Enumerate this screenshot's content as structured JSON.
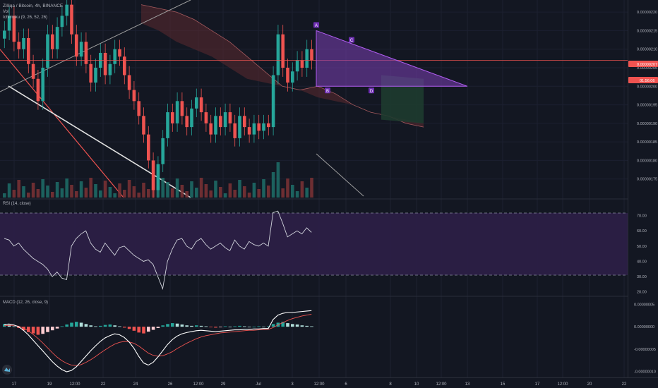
{
  "header": {
    "title": "Zilliqa / Bitcoin, 4h, BINANCE",
    "vol_label": "Vol",
    "ichimoku_label": "Ichimoku (9, 26, 52, 26)",
    "rsi_label": "RSI (14, close)",
    "macd_label": "MACD (12, 26, close, 9)"
  },
  "price_badges": {
    "last": "0.00000207",
    "countdown": "01:56:06"
  },
  "colors": {
    "background": "#131722",
    "up": "#26a69a",
    "down": "#ef5350",
    "pattern": "#9c27b0",
    "rsi_band": "#4a2a6b",
    "price_line": "#ef5350"
  },
  "chart_data": [
    {
      "type": "candlestick",
      "title": "Zilliqa / Bitcoin, 4h, BINANCE",
      "x_ticks": [
        "17",
        "19",
        "12:00",
        "22",
        "24",
        "26",
        "12:00",
        "29",
        "Jul",
        "3",
        "12:00",
        "6",
        "8",
        "10",
        "12:00",
        "13",
        "15",
        "17",
        "12:00",
        "20",
        "22"
      ],
      "y_ticks": [
        "0.00000220",
        "0.00000215",
        "0.00000210",
        "0.00000205",
        "0.00000200",
        "0.00000195",
        "0.00000190",
        "0.00000185",
        "0.00000180",
        "0.00000175"
      ],
      "y_range": [
        1.7e-06,
        2.225e-06
      ],
      "last_price": 2.07e-06,
      "close": [
        2.15e-06,
        2.19e-06,
        2.12e-06,
        2.1e-06,
        2.13e-06,
        2.06e-06,
        2.02e-06,
        1.96e-06,
        2.05e-06,
        2.14e-06,
        2.1e-06,
        2.16e-06,
        2.19e-06,
        2.22e-06,
        2.14e-06,
        2.08e-06,
        2.12e-06,
        2.06e-06,
        2.01e-06,
        2.05e-06,
        2.09e-06,
        2.03e-06,
        2.06e-06,
        2.1e-06,
        2.08e-06,
        2.03e-06,
        1.99e-06,
        1.96e-06,
        1.92e-06,
        1.87e-06,
        1.8e-06,
        1.72e-06,
        1.79e-06,
        1.86e-06,
        1.93e-06,
        1.9e-06,
        1.96e-06,
        1.92e-06,
        1.89e-06,
        1.94e-06,
        1.97e-06,
        1.93e-06,
        1.9e-06,
        1.87e-06,
        1.92e-06,
        1.89e-06,
        1.93e-06,
        1.9e-06,
        1.86e-06,
        1.92e-06,
        1.89e-06,
        1.87e-06,
        1.9e-06,
        1.88e-06,
        1.9e-06,
        1.89e-06,
        2.03e-06,
        2.14e-06,
        2.05e-06,
        2.01e-06,
        2.04e-06,
        2.07e-06,
        2.05e-06,
        2.1e-06,
        2.07e-06
      ],
      "ichimoku": {
        "cloud_a": [
          2.22e-06,
          2.21e-06,
          2.2e-06,
          2.18e-06,
          2.15e-06,
          2.12e-06,
          2.08e-06,
          2.04e-06,
          2e-06,
          1.99e-06,
          2e-06,
          1.98e-06,
          1.95e-06,
          1.93e-06,
          1.92e-06,
          1.9e-06,
          1.89e-06
        ],
        "cloud_b": [
          2.17e-06,
          2.15e-06,
          2.12e-06,
          2.1e-06,
          2.08e-06,
          2.05e-06,
          2.02e-06,
          2.01e-06,
          2e-06,
          1.99e-06,
          1.97e-06,
          1.96e-06,
          1.95e-06,
          1.93e-06,
          1.92e-06,
          1.91e-06,
          1.9e-06
        ]
      },
      "pattern": {
        "points": [
          {
            "label": "A",
            "price": 2.15e-06
          },
          {
            "label": "B",
            "price": 2e-06
          },
          {
            "label": "C",
            "price": 2.11e-06
          },
          {
            "label": "D",
            "price": 2e-06
          }
        ]
      }
    },
    {
      "type": "line",
      "title": "RSI (14, close)",
      "y_ticks": [
        "70.00",
        "60.00",
        "50.00",
        "40.00",
        "30.00",
        "20.00"
      ],
      "y_range": [
        18,
        80
      ],
      "band": [
        30,
        70
      ],
      "values": [
        55,
        54,
        50,
        52,
        48,
        45,
        42,
        40,
        38,
        35,
        30,
        33,
        29,
        28,
        50,
        55,
        58,
        60,
        52,
        48,
        46,
        52,
        48,
        44,
        49,
        50,
        47,
        44,
        42,
        40,
        41,
        38,
        30,
        22,
        40,
        48,
        54,
        55,
        50,
        48,
        53,
        55,
        51,
        48,
        50,
        52,
        49,
        47,
        54,
        50,
        48,
        53,
        51,
        50,
        52,
        50,
        72,
        73,
        65,
        56,
        58,
        60,
        58,
        62,
        59
      ]
    },
    {
      "type": "bar+line",
      "title": "MACD (12, 26, close, 9)",
      "y_ticks": [
        "0.00000005",
        "0.00000000",
        "-0.00000005",
        "-0.00000010"
      ],
      "y_range": [
        -1.12e-07,
        6.5e-08
      ],
      "histogram": [
        0.6,
        0.4,
        0.1,
        -0.3,
        -0.8,
        -1.2,
        -1.5,
        -1.8,
        -1.6,
        -1.2,
        -0.8,
        -0.4,
        0.1,
        0.5,
        0.9,
        1.1,
        0.9,
        0.6,
        0.3,
        0.1,
        0.2,
        0.4,
        0.5,
        0.3,
        0.1,
        -0.2,
        -0.5,
        -0.9,
        -1.3,
        -1.5,
        -1.1,
        -0.7,
        -0.3,
        0.3,
        0.6,
        0.8,
        0.7,
        0.5,
        0.3,
        0.2,
        0.3,
        0.2,
        0.1,
        -0.1,
        -0.2,
        -0.1,
        0.1,
        0.0,
        0.1,
        0.2,
        0.1,
        0.0,
        0.0,
        0.1,
        0.0,
        0.1,
        0.6,
        0.9,
        1.1,
        0.8,
        0.6,
        0.5,
        0.3,
        0.2,
        0.1
      ],
      "macd": [
        0.5,
        0.6,
        0.4,
        0.0,
        -0.8,
        -1.8,
        -3.0,
        -4.2,
        -5.4,
        -6.6,
        -7.8,
        -8.8,
        -9.6,
        -10.1,
        -9.8,
        -9.0,
        -7.8,
        -6.6,
        -5.4,
        -4.3,
        -3.3,
        -2.5,
        -2.0,
        -1.6,
        -1.8,
        -2.4,
        -3.4,
        -4.8,
        -6.6,
        -8.1,
        -8.6,
        -8.0,
        -6.8,
        -5.4,
        -4.0,
        -2.9,
        -2.1,
        -1.6,
        -1.3,
        -1.1,
        -0.9,
        -0.8,
        -0.9,
        -1.0,
        -1.1,
        -1.0,
        -0.9,
        -0.8,
        -0.7,
        -0.7,
        -0.6,
        -0.6,
        -0.5,
        -0.5,
        -0.4,
        -0.4,
        1.6,
        2.6,
        3.0,
        3.2,
        3.2,
        3.3,
        3.4,
        3.5,
        3.6
      ],
      "signal": [
        0.2,
        0.3,
        0.3,
        0.1,
        -0.3,
        -0.9,
        -1.7,
        -2.6,
        -3.6,
        -4.7,
        -5.8,
        -6.8,
        -7.6,
        -8.2,
        -8.6,
        -8.7,
        -8.5,
        -8.0,
        -7.4,
        -6.7,
        -5.9,
        -5.2,
        -4.5,
        -3.9,
        -3.5,
        -3.3,
        -3.4,
        -3.7,
        -4.3,
        -5.1,
        -5.9,
        -6.4,
        -6.6,
        -6.5,
        -6.1,
        -5.6,
        -4.9,
        -4.3,
        -3.7,
        -3.2,
        -2.7,
        -2.3,
        -2.0,
        -1.8,
        -1.6,
        -1.4,
        -1.3,
        -1.2,
        -1.1,
        -1.0,
        -0.9,
        -0.8,
        -0.8,
        -0.7,
        -0.7,
        -0.6,
        -0.2,
        0.4,
        0.9,
        1.4,
        1.8,
        2.1,
        2.4,
        2.6,
        2.8
      ],
      "scale_note": "histogram/macd/signal in units of 1e-8"
    }
  ]
}
